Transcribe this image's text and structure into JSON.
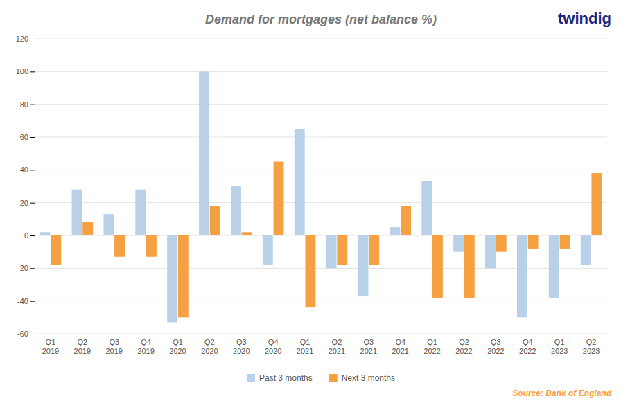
{
  "chart_data": {
    "type": "bar",
    "title": "Demand for mortgages (net balance %)",
    "categories": [
      "Q1\n2019",
      "Q2\n2019",
      "Q3\n2019",
      "Q4\n2019",
      "Q1\n2020",
      "Q2\n2020",
      "Q3\n2020",
      "Q4\n2020",
      "Q1\n2021",
      "Q2\n2021",
      "Q3\n2021",
      "Q4\n2021",
      "Q1\n2022",
      "Q2\n2022",
      "Q3\n2022",
      "Q4\n2022",
      "Q1\n2023",
      "Q2\n2023"
    ],
    "series": [
      {
        "name": "Past 3 months",
        "color": "#b8d0e8",
        "values": [
          2,
          28,
          13,
          28,
          -53,
          100,
          30,
          -18,
          65,
          -20,
          -37,
          5,
          33,
          -10,
          -20,
          -50,
          -38,
          -18
        ]
      },
      {
        "name": "Next 3 months",
        "color": "#f5a142",
        "values": [
          -18,
          8,
          -13,
          -13,
          -50,
          18,
          2,
          45,
          -44,
          -18,
          -18,
          18,
          -38,
          -38,
          -10,
          -8,
          -8,
          38
        ]
      }
    ],
    "ylim": [
      -60,
      120
    ],
    "yticks": [
      -60,
      -40,
      -20,
      0,
      20,
      40,
      60,
      80,
      100,
      120
    ],
    "grid": true,
    "legend": "bottom",
    "annotations": [
      "Source: Bank of England",
      "twindig"
    ]
  }
}
